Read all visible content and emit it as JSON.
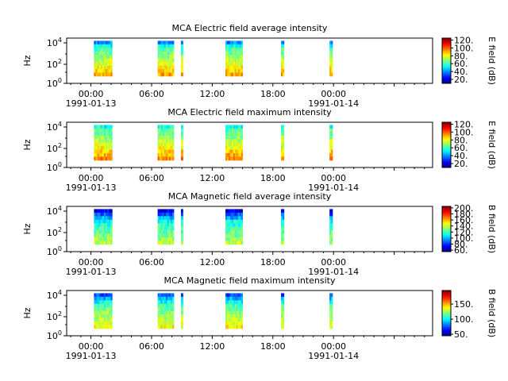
{
  "chart_data": [
    {
      "type": "heatmap",
      "title": "MCA  Electric field average intensity",
      "ylabel": "Hz",
      "y_scale": "log",
      "yticks": [
        "10^4",
        "10^2",
        "10^0"
      ],
      "xticks": [
        "00:00",
        "06:00",
        "12:00",
        "18:00",
        "00:00"
      ],
      "x_dates": [
        "1991-01-13",
        "1991-01-14"
      ],
      "x_range_hours": [
        -2.4,
        33.8
      ],
      "colorbar_label": "E field (dB)",
      "colorbar_range": [
        10,
        125
      ],
      "colorbar_ticks": [
        "120.",
        "100.",
        "80.",
        "60.",
        "40.",
        "20."
      ],
      "colorbar_tick_values": [
        120,
        100,
        80,
        60,
        40,
        20
      ],
      "data_intervals_hours": [
        [
          0.3,
          2.1
        ],
        [
          6.6,
          8.2
        ],
        [
          8.9,
          9.1
        ],
        [
          13.3,
          15.0
        ],
        [
          18.8,
          19.1
        ],
        [
          23.6,
          23.9
        ]
      ],
      "band_levels_by_row": [
        40,
        55,
        62,
        66,
        70,
        74,
        78,
        82,
        86,
        92
      ]
    },
    {
      "type": "heatmap",
      "title": "MCA  Electric field maximum intensity",
      "ylabel": "Hz",
      "y_scale": "log",
      "yticks": [
        "10^4",
        "10^2",
        "10^0"
      ],
      "xticks": [
        "00:00",
        "06:00",
        "12:00",
        "18:00",
        "00:00"
      ],
      "x_dates": [
        "1991-01-13",
        "1991-01-14"
      ],
      "x_range_hours": [
        -2.4,
        33.8
      ],
      "colorbar_label": "E field (dB)",
      "colorbar_range": [
        10,
        125
      ],
      "colorbar_ticks": [
        "120.",
        "100.",
        "80.",
        "60.",
        "40.",
        "20."
      ],
      "colorbar_tick_values": [
        120,
        100,
        80,
        60,
        40,
        20
      ],
      "data_intervals_hours": [
        [
          0.3,
          2.1
        ],
        [
          6.6,
          8.2
        ],
        [
          8.9,
          9.1
        ],
        [
          13.3,
          15.0
        ],
        [
          18.8,
          19.1
        ],
        [
          23.6,
          23.9
        ]
      ],
      "band_levels_by_row": [
        55,
        62,
        66,
        70,
        74,
        78,
        82,
        86,
        90,
        96
      ]
    },
    {
      "type": "heatmap",
      "title": "MCA  Magnetic field average intensity",
      "ylabel": "Hz",
      "y_scale": "log",
      "yticks": [
        "10^4",
        "10^2",
        "10^0"
      ],
      "xticks": [
        "00:00",
        "06:00",
        "12:00",
        "18:00",
        "00:00"
      ],
      "x_dates": [
        "1991-01-13",
        "1991-01-14"
      ],
      "x_range_hours": [
        -2.4,
        33.8
      ],
      "colorbar_label": "B field (dB)",
      "colorbar_range": [
        55,
        205
      ],
      "colorbar_ticks": [
        "200.",
        "180.",
        "160.",
        "140.",
        "120.",
        "100.",
        "80.",
        "60."
      ],
      "colorbar_tick_values": [
        200,
        180,
        160,
        140,
        120,
        100,
        80,
        60
      ],
      "data_intervals_hours": [
        [
          0.3,
          2.1
        ],
        [
          6.6,
          8.2
        ],
        [
          8.9,
          9.1
        ],
        [
          13.3,
          15.0
        ],
        [
          18.8,
          19.1
        ],
        [
          23.6,
          23.9
        ]
      ],
      "band_levels_by_row": [
        70,
        85,
        100,
        112,
        118,
        122,
        126,
        130,
        134,
        138
      ]
    },
    {
      "type": "heatmap",
      "title": "MCA  Magnetic field maximum intensity",
      "ylabel": "Hz",
      "y_scale": "log",
      "yticks": [
        "10^4",
        "10^2",
        "10^0"
      ],
      "xticks": [
        "00:00",
        "06:00",
        "12:00",
        "18:00",
        "00:00"
      ],
      "x_dates": [
        "1991-01-13",
        "1991-01-14"
      ],
      "x_range_hours": [
        -2.4,
        33.8
      ],
      "colorbar_label": "B field (dB)",
      "colorbar_range": [
        45,
        195
      ],
      "colorbar_ticks": [
        "150.",
        "100.",
        "50."
      ],
      "colorbar_tick_values": [
        150,
        100,
        50
      ],
      "data_intervals_hours": [
        [
          0.3,
          2.1
        ],
        [
          6.6,
          8.2
        ],
        [
          8.9,
          9.1
        ],
        [
          13.3,
          15.0
        ],
        [
          18.8,
          19.1
        ],
        [
          23.6,
          23.9
        ]
      ],
      "band_levels_by_row": [
        75,
        90,
        102,
        112,
        118,
        122,
        126,
        130,
        134,
        138
      ]
    }
  ]
}
